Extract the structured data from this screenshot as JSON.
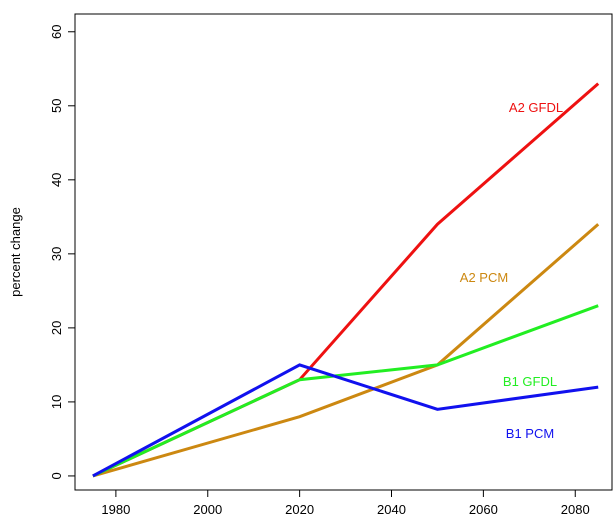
{
  "chart_data": {
    "type": "line",
    "y_label": "percent change",
    "x": [
      1975,
      2020,
      2050,
      2085
    ],
    "series": [
      {
        "name": "A2 GFDL",
        "color": "#ee1111",
        "values": [
          0,
          13,
          34,
          53
        ]
      },
      {
        "name": "A2 PCM",
        "color": "#cc8811",
        "values": [
          0,
          8,
          15,
          34
        ]
      },
      {
        "name": "B1 GFDL",
        "color": "#22ee22",
        "values": [
          0,
          13,
          15,
          23
        ]
      },
      {
        "name": "B1 PCM",
        "color": "#1111ee",
        "values": [
          0,
          15,
          9,
          12
        ]
      }
    ],
    "xlim": [
      1971.1,
      2088
    ],
    "xticks": [
      1980,
      2000,
      2020,
      2040,
      2060,
      2080
    ],
    "ylim": [
      -1.9,
      62.4
    ],
    "yticks": [
      0,
      10,
      20,
      30,
      40,
      50,
      60
    ]
  }
}
